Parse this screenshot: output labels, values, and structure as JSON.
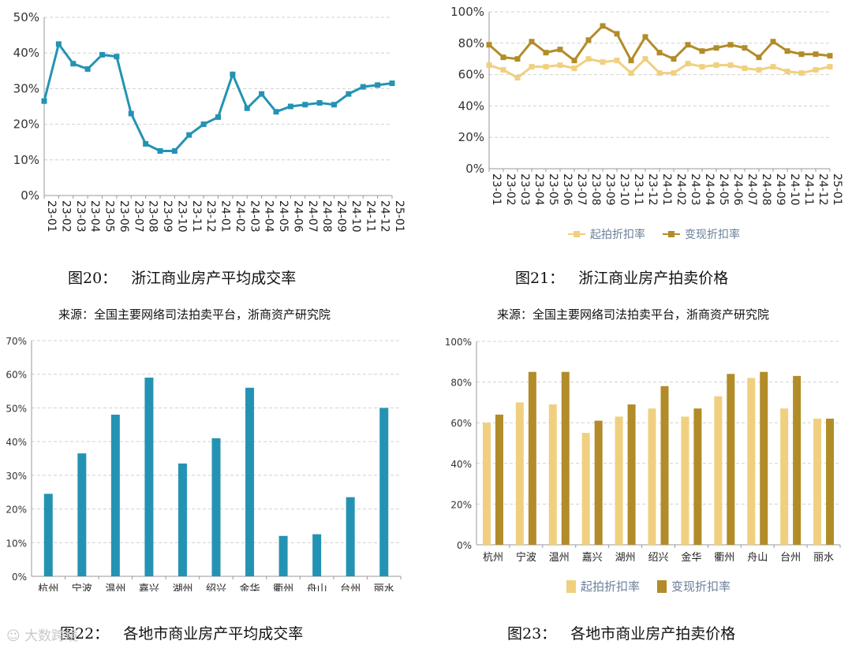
{
  "colors": {
    "teal": "#2493b3",
    "light_gold": "#f0d080",
    "dark_gold": "#b18c28",
    "grid": "#d0d0d0"
  },
  "captions": {
    "fig20": "图20：   浙江商业房产平均成交率",
    "fig21": "图21：   浙江商业房产拍卖价格",
    "fig22": "图22：   各地市商业房产平均成交率",
    "fig23": "图23：   各地市商业房产拍卖价格",
    "source": "来源：全国主要网络司法拍卖平台，浙商资产研究院"
  },
  "watermark": "大数跨境",
  "chart_data": [
    {
      "type": "line",
      "x": [
        "23-01",
        "23-02",
        "23-03",
        "23-04",
        "23-05",
        "23-06",
        "23-07",
        "23-08",
        "23-09",
        "23-10",
        "23-11",
        "23-12",
        "24-01",
        "24-02",
        "24-03",
        "24-04",
        "24-05",
        "24-06",
        "24-07",
        "24-08",
        "24-09",
        "24-10",
        "24-11",
        "24-12",
        "25-01"
      ],
      "series": [
        {
          "values": [
            26.5,
            42.5,
            37,
            35.5,
            39.5,
            39,
            23,
            14.5,
            12.5,
            12.5,
            17,
            20,
            22,
            34,
            24.5,
            28.5,
            23.5,
            25,
            25.5,
            26,
            25.5,
            28.5,
            30.5,
            31,
            31.5
          ]
        }
      ],
      "ylim": [
        0,
        50
      ],
      "yticks": [
        "0%",
        "10%",
        "20%",
        "30%",
        "40%",
        "50%"
      ],
      "grid": "horizontal dashed"
    },
    {
      "type": "line",
      "x": [
        "23-01",
        "23-02",
        "23-03",
        "23-04",
        "23-05",
        "23-06",
        "23-07",
        "23-08",
        "23-09",
        "23-10",
        "23-11",
        "23-12",
        "24-01",
        "24-02",
        "24-03",
        "24-04",
        "24-05",
        "24-06",
        "24-07",
        "24-08",
        "24-09",
        "24-10",
        "24-11",
        "24-12",
        "25-01"
      ],
      "series": [
        {
          "name": "起拍折扣率",
          "values": [
            66,
            63,
            58,
            65,
            65,
            66,
            64,
            70,
            68,
            69,
            61,
            70,
            61,
            61,
            67,
            65,
            66,
            66,
            64,
            63,
            65,
            62,
            61,
            63,
            65
          ]
        },
        {
          "name": "变现折扣率",
          "values": [
            79,
            71,
            70,
            81,
            74,
            76,
            69,
            82,
            91,
            86,
            69,
            84,
            74,
            70,
            79,
            75,
            77,
            79,
            77,
            71,
            81,
            75,
            73,
            73,
            72
          ]
        }
      ],
      "ylim": [
        0,
        100
      ],
      "yticks": [
        "0%",
        "20%",
        "40%",
        "60%",
        "80%",
        "100%"
      ],
      "legend": "bottom-center",
      "grid": "horizontal dashed"
    },
    {
      "type": "bar",
      "categories": [
        "杭州",
        "宁波",
        "温州",
        "嘉兴",
        "湖州",
        "绍兴",
        "金华",
        "衢州",
        "舟山",
        "台州",
        "丽水"
      ],
      "series": [
        {
          "values": [
            24.5,
            36.5,
            48,
            59,
            33.5,
            41,
            56,
            12,
            12.5,
            23.5,
            50
          ]
        }
      ],
      "ylim": [
        0,
        70
      ],
      "yticks": [
        "0%",
        "10%",
        "20%",
        "30%",
        "40%",
        "50%",
        "60%",
        "70%"
      ],
      "grid": "horizontal dashed"
    },
    {
      "type": "bar",
      "categories": [
        "杭州",
        "宁波",
        "温州",
        "嘉兴",
        "湖州",
        "绍兴",
        "金华",
        "衢州",
        "舟山",
        "台州",
        "丽水"
      ],
      "series": [
        {
          "name": "起拍折扣率",
          "values": [
            60,
            70,
            69,
            55,
            63,
            67,
            63,
            73,
            82,
            67,
            62
          ]
        },
        {
          "name": "变现折扣率",
          "values": [
            64,
            85,
            85,
            61,
            69,
            78,
            67,
            84,
            85,
            83,
            62
          ]
        }
      ],
      "ylim": [
        0,
        100
      ],
      "yticks": [
        "0%",
        "20%",
        "40%",
        "60%",
        "80%",
        "100%"
      ],
      "legend": "bottom-center",
      "grid": "horizontal dashed"
    }
  ]
}
